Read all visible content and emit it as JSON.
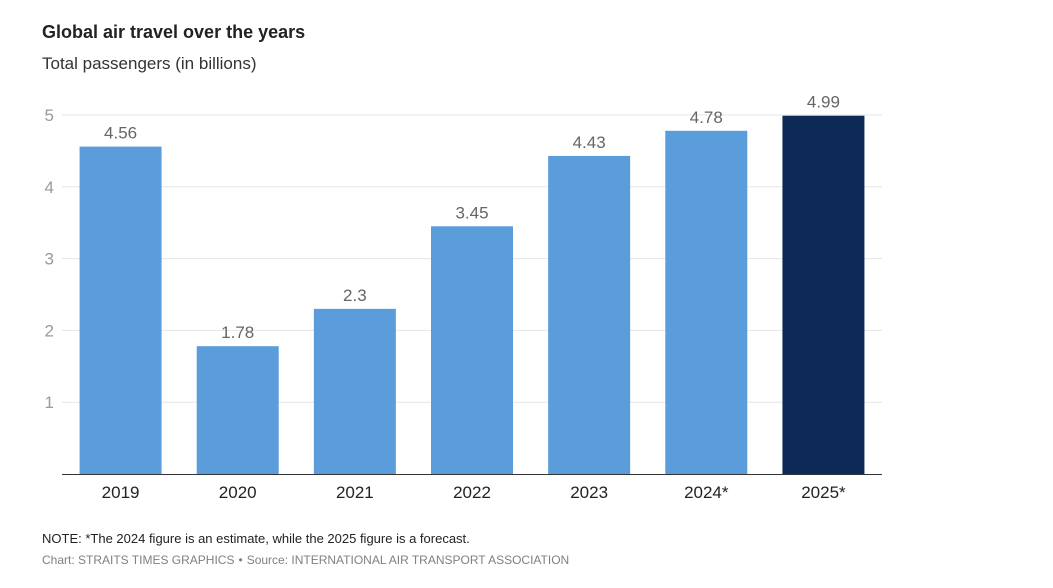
{
  "chart_data": {
    "type": "bar",
    "title": "Global air travel over the years",
    "subtitle": "Total passengers (in billions)",
    "categories": [
      "2019",
      "2020",
      "2021",
      "2022",
      "2023",
      "2024*",
      "2025*"
    ],
    "values": [
      4.56,
      1.78,
      2.3,
      3.45,
      4.43,
      4.78,
      4.99
    ],
    "value_labels": [
      "4.56",
      "1.78",
      "2.3",
      "3.45",
      "4.43",
      "4.78",
      "4.99"
    ],
    "highlight_index": 6,
    "ylim": [
      0,
      5
    ],
    "yticks": [
      1,
      2,
      3,
      4,
      5
    ],
    "xlabel": "",
    "ylabel": "",
    "grid": true,
    "colors": {
      "bar": "#5b9ddb",
      "highlight": "#0d2a57",
      "grid": "#e6e6e6",
      "axis": "#333333",
      "tick_text": "#9a9a9a",
      "label_text": "#666666"
    }
  },
  "footer": {
    "note": "NOTE: *The 2024 figure is an estimate, while the 2025 figure is a forecast.",
    "chart_credit": "Chart: STRAITS TIMES GRAPHICS",
    "separator": "•",
    "source": "Source: INTERNATIONAL AIR TRANSPORT ASSOCIATION"
  }
}
